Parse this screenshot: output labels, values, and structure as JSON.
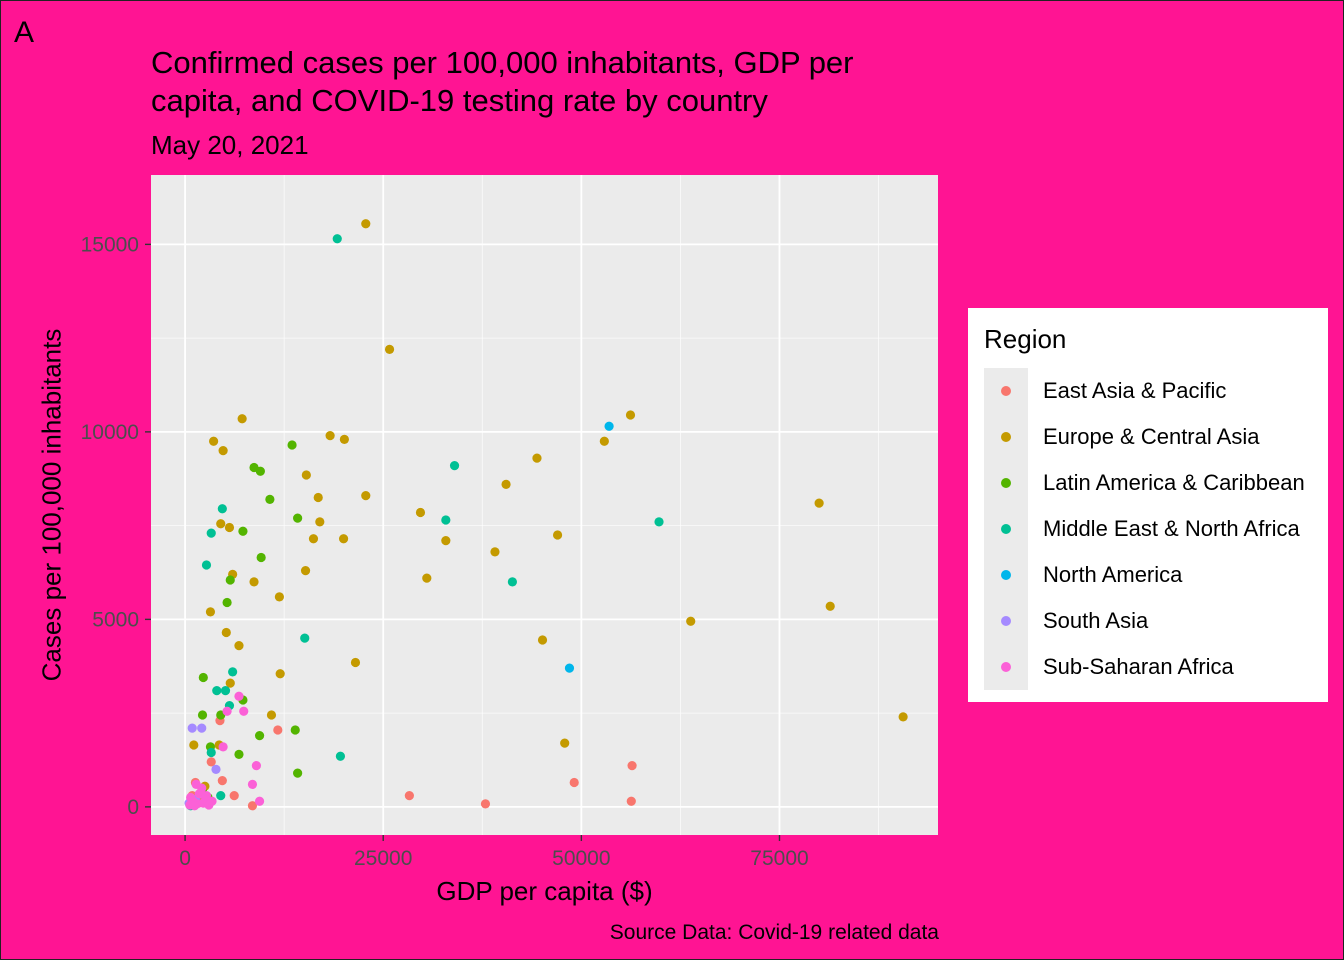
{
  "panel_label": "A",
  "chart_data": {
    "type": "scatter",
    "title": "Confirmed cases per 100,000 inhabitants, GDP per capita, and COVID-19 testing rate by country",
    "subtitle": "May 20, 2021",
    "xlabel": "GDP per capita ($)",
    "ylabel": "Cases per 100,000 inhabitants",
    "caption": "Source Data: Covid-19 related data",
    "xlim": [
      -4300,
      95000
    ],
    "ylim": [
      -750,
      16850
    ],
    "x_ticks": [
      0,
      25000,
      50000,
      75000
    ],
    "y_ticks": [
      0,
      5000,
      10000,
      15000
    ],
    "grid": true,
    "legend": {
      "title": "Region",
      "position": "right"
    },
    "series": [
      {
        "name": "East Asia & Pacific",
        "color": "#F8766D",
        "points": [
          [
            28300,
            300
          ],
          [
            37900,
            80
          ],
          [
            49100,
            650
          ],
          [
            56400,
            1100
          ],
          [
            56300,
            150
          ],
          [
            11700,
            2050
          ],
          [
            6200,
            300
          ],
          [
            8500,
            30
          ],
          [
            4400,
            2300
          ],
          [
            4700,
            700
          ],
          [
            3300,
            1200
          ],
          [
            1300,
            650
          ],
          [
            900,
            300
          ],
          [
            1700,
            100
          ],
          [
            2200,
            250
          ],
          [
            600,
            100
          ],
          [
            2000,
            300
          ],
          [
            3000,
            150
          ]
        ]
      },
      {
        "name": "Europe & Central Asia",
        "color": "#C49A00",
        "points": [
          [
            22800,
            15550
          ],
          [
            25800,
            12200
          ],
          [
            7200,
            10350
          ],
          [
            3600,
            9750
          ],
          [
            4800,
            9500
          ],
          [
            18300,
            9900
          ],
          [
            20100,
            9800
          ],
          [
            15300,
            8850
          ],
          [
            16800,
            8250
          ],
          [
            22800,
            8300
          ],
          [
            17000,
            7600
          ],
          [
            16200,
            7150
          ],
          [
            20000,
            7150
          ],
          [
            29700,
            7850
          ],
          [
            32900,
            7100
          ],
          [
            30500,
            6100
          ],
          [
            40500,
            8600
          ],
          [
            44400,
            9300
          ],
          [
            47000,
            7250
          ],
          [
            52900,
            9750
          ],
          [
            56200,
            10450
          ],
          [
            80000,
            8100
          ],
          [
            81400,
            5350
          ],
          [
            63800,
            4950
          ],
          [
            90600,
            2400
          ],
          [
            47900,
            1700
          ],
          [
            45100,
            4450
          ],
          [
            39100,
            6800
          ],
          [
            21500,
            3850
          ],
          [
            15200,
            6300
          ],
          [
            11900,
            5600
          ],
          [
            12000,
            3550
          ],
          [
            5600,
            7450
          ],
          [
            4500,
            7550
          ],
          [
            6000,
            6200
          ],
          [
            8700,
            6000
          ],
          [
            3200,
            5200
          ],
          [
            5200,
            4650
          ],
          [
            6800,
            4300
          ],
          [
            5700,
            3300
          ],
          [
            1100,
            1650
          ],
          [
            10900,
            2450
          ],
          [
            4300,
            1650
          ],
          [
            2500,
            550
          ]
        ]
      },
      {
        "name": "Latin America & Caribbean",
        "color": "#53B400",
        "points": [
          [
            13500,
            9650
          ],
          [
            8700,
            9050
          ],
          [
            9500,
            8950
          ],
          [
            10700,
            8200
          ],
          [
            14200,
            7700
          ],
          [
            7300,
            7350
          ],
          [
            9600,
            6650
          ],
          [
            5700,
            6050
          ],
          [
            5300,
            5450
          ],
          [
            2300,
            3450
          ],
          [
            7300,
            2850
          ],
          [
            4500,
            2450
          ],
          [
            2200,
            2450
          ],
          [
            9400,
            1900
          ],
          [
            13900,
            2050
          ],
          [
            6800,
            1400
          ],
          [
            3200,
            1600
          ],
          [
            14200,
            900
          ],
          [
            2200,
            400
          ],
          [
            2900,
            250
          ]
        ]
      },
      {
        "name": "Middle East & North Africa",
        "color": "#00C094",
        "points": [
          [
            19200,
            15150
          ],
          [
            34000,
            9100
          ],
          [
            32900,
            7650
          ],
          [
            59800,
            7600
          ],
          [
            41300,
            6000
          ],
          [
            15100,
            4500
          ],
          [
            19600,
            1350
          ],
          [
            3300,
            7300
          ],
          [
            4700,
            7950
          ],
          [
            2700,
            6450
          ],
          [
            6000,
            3600
          ],
          [
            4000,
            3100
          ],
          [
            5100,
            3100
          ],
          [
            5600,
            2700
          ],
          [
            3300,
            1450
          ],
          [
            4500,
            300
          ],
          [
            700,
            30
          ]
        ]
      },
      {
        "name": "North America",
        "color": "#00B6EB",
        "points": [
          [
            53500,
            10150
          ],
          [
            48500,
            3700
          ]
        ]
      },
      {
        "name": "South Asia",
        "color": "#A58AFF",
        "points": [
          [
            900,
            2100
          ],
          [
            2100,
            2100
          ],
          [
            3900,
            1000
          ],
          [
            1900,
            350
          ],
          [
            500,
            100
          ],
          [
            1300,
            200
          ]
        ]
      },
      {
        "name": "Sub-Saharan Africa",
        "color": "#FB61D7",
        "points": [
          [
            6800,
            2950
          ],
          [
            7400,
            2550
          ],
          [
            5300,
            2550
          ],
          [
            4800,
            1600
          ],
          [
            9000,
            1100
          ],
          [
            8500,
            600
          ],
          [
            9400,
            150
          ],
          [
            1400,
            600
          ],
          [
            2100,
            500
          ],
          [
            700,
            250
          ],
          [
            1500,
            80
          ],
          [
            2600,
            200
          ],
          [
            1000,
            150
          ],
          [
            2300,
            100
          ],
          [
            3000,
            50
          ],
          [
            600,
            50
          ],
          [
            1800,
            350
          ],
          [
            3400,
            150
          ],
          [
            1200,
            30
          ],
          [
            2700,
            300
          ]
        ]
      }
    ]
  }
}
